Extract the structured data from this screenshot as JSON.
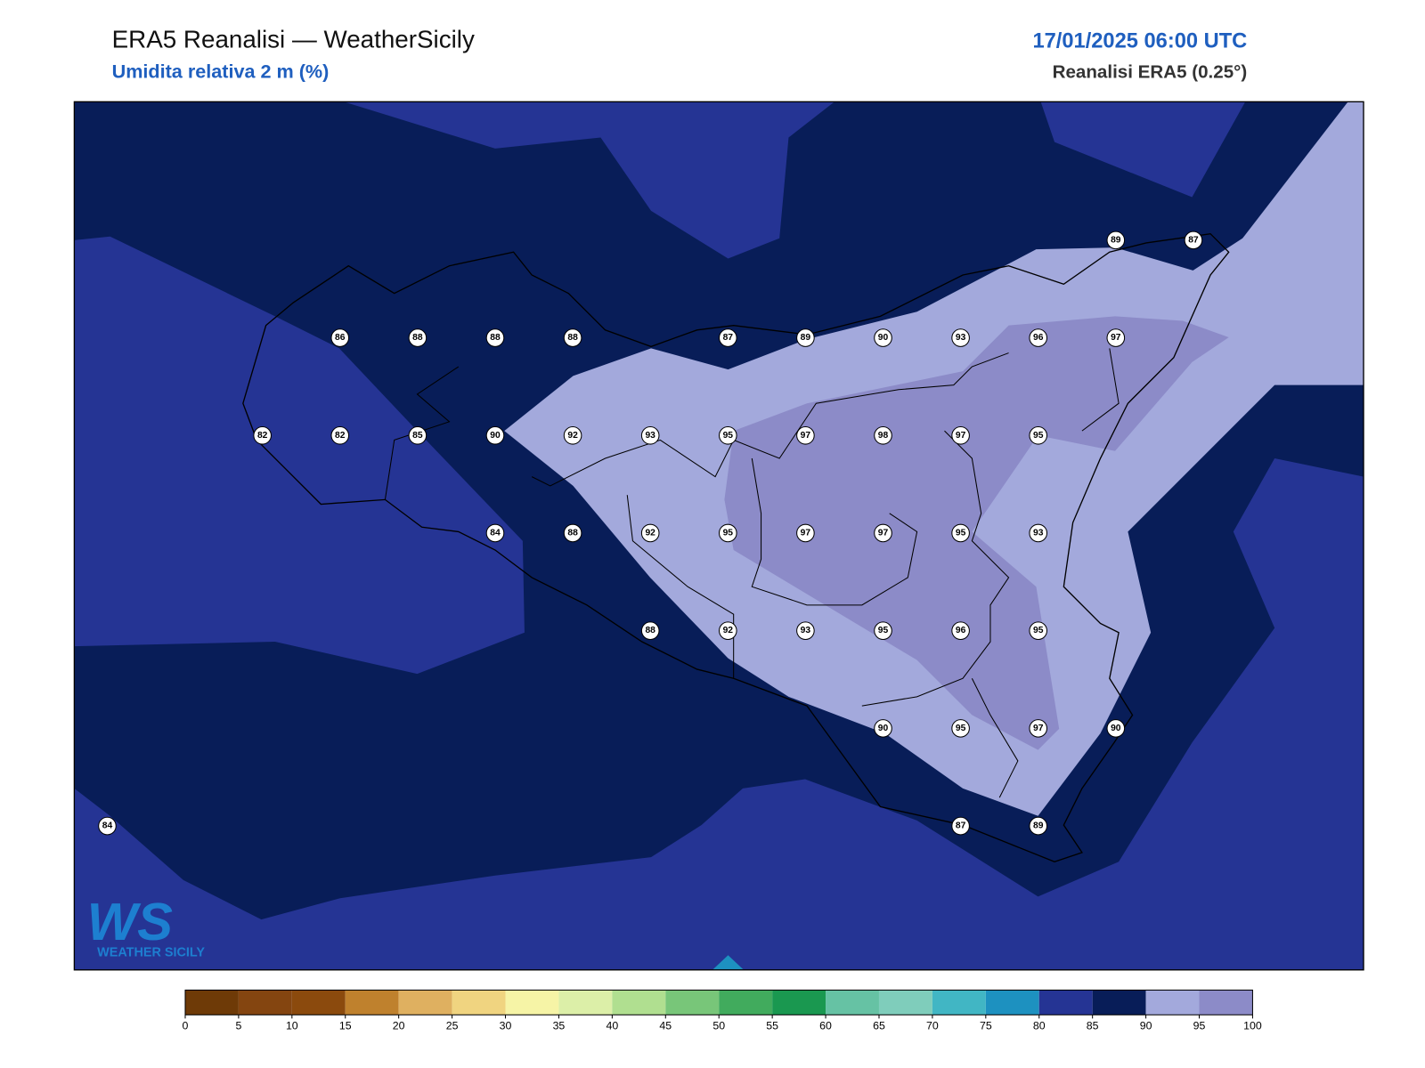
{
  "header": {
    "title": "ERA5 Reanalisi — WeatherSicily",
    "subtitle": "Umidita relativa 2 m (%)",
    "datetime": "17/01/2025 06:00 UTC",
    "source": "Reanalisi ERA5 (0.25°)"
  },
  "stations": [
    [
      null,
      null,
      null,
      null,
      null,
      null,
      null,
      null,
      null,
      null,
      null,
      null,
      null,
      89,
      87
    ],
    [
      null,
      null,
      null,
      86,
      88,
      88,
      88,
      null,
      87,
      89,
      90,
      93,
      96,
      97,
      null
    ],
    [
      null,
      null,
      82,
      82,
      85,
      90,
      92,
      93,
      95,
      97,
      98,
      97,
      95,
      null,
      null
    ],
    [
      null,
      null,
      null,
      null,
      null,
      84,
      88,
      92,
      95,
      97,
      97,
      95,
      93,
      null,
      null
    ],
    [
      null,
      null,
      null,
      null,
      null,
      null,
      null,
      88,
      92,
      93,
      95,
      96,
      95,
      null,
      null
    ],
    [
      null,
      null,
      null,
      null,
      null,
      null,
      null,
      null,
      null,
      null,
      90,
      95,
      97,
      90,
      null
    ],
    [
      84,
      null,
      null,
      null,
      null,
      null,
      null,
      null,
      null,
      null,
      null,
      87,
      89,
      null,
      null
    ]
  ],
  "colorbar": {
    "ticks": [
      0,
      5,
      10,
      15,
      20,
      25,
      30,
      35,
      40,
      45,
      50,
      55,
      60,
      65,
      70,
      75,
      80,
      85,
      90,
      95,
      100
    ],
    "colors": [
      "#6e3a07",
      "#844510",
      "#8b4a0d",
      "#bf812d",
      "#dfb060",
      "#f0d480",
      "#f6f4a6",
      "#dcefa8",
      "#b0df90",
      "#78c679",
      "#41ab5d",
      "#1a9850",
      "#66c2a4",
      "#7fcdbb",
      "#41b6c4",
      "#1d91c0",
      "#253494",
      "#081d58",
      "#a3a9dc",
      "#8c8bc8"
    ]
  },
  "logo": {
    "mark": "WS",
    "name": "WEATHER SICILY"
  }
}
